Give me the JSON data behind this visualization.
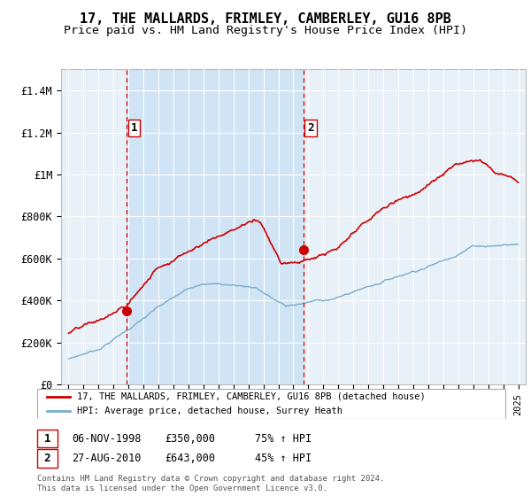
{
  "title": "17, THE MALLARDS, FRIMLEY, CAMBERLEY, GU16 8PB",
  "subtitle": "Price paid vs. HM Land Registry's House Price Index (HPI)",
  "title_fontsize": 11,
  "subtitle_fontsize": 9.5,
  "background_color": "#ffffff",
  "plot_bg_color": "#e8f0f8",
  "shade_color": "#d0e4f5",
  "grid_color": "#ffffff",
  "sale1_date": 1998.85,
  "sale1_price": 350000,
  "sale2_date": 2010.65,
  "sale2_price": 643000,
  "red_line_color": "#cc0000",
  "blue_line_color": "#7aadcc",
  "dashed_line_color": "#cc0000",
  "yticks": [
    0,
    200000,
    400000,
    600000,
    800000,
    1000000,
    1200000,
    1400000
  ],
  "ytick_labels": [
    "£0",
    "£200K",
    "£400K",
    "£600K",
    "£800K",
    "£1M",
    "£1.2M",
    "£1.4M"
  ],
  "xlim": [
    1994.5,
    2025.5
  ],
  "ylim": [
    0,
    1500000
  ],
  "legend_line1": "17, THE MALLARDS, FRIMLEY, CAMBERLEY, GU16 8PB (detached house)",
  "legend_line2": "HPI: Average price, detached house, Surrey Heath",
  "footer": "Contains HM Land Registry data © Crown copyright and database right 2024.\nThis data is licensed under the Open Government Licence v3.0."
}
